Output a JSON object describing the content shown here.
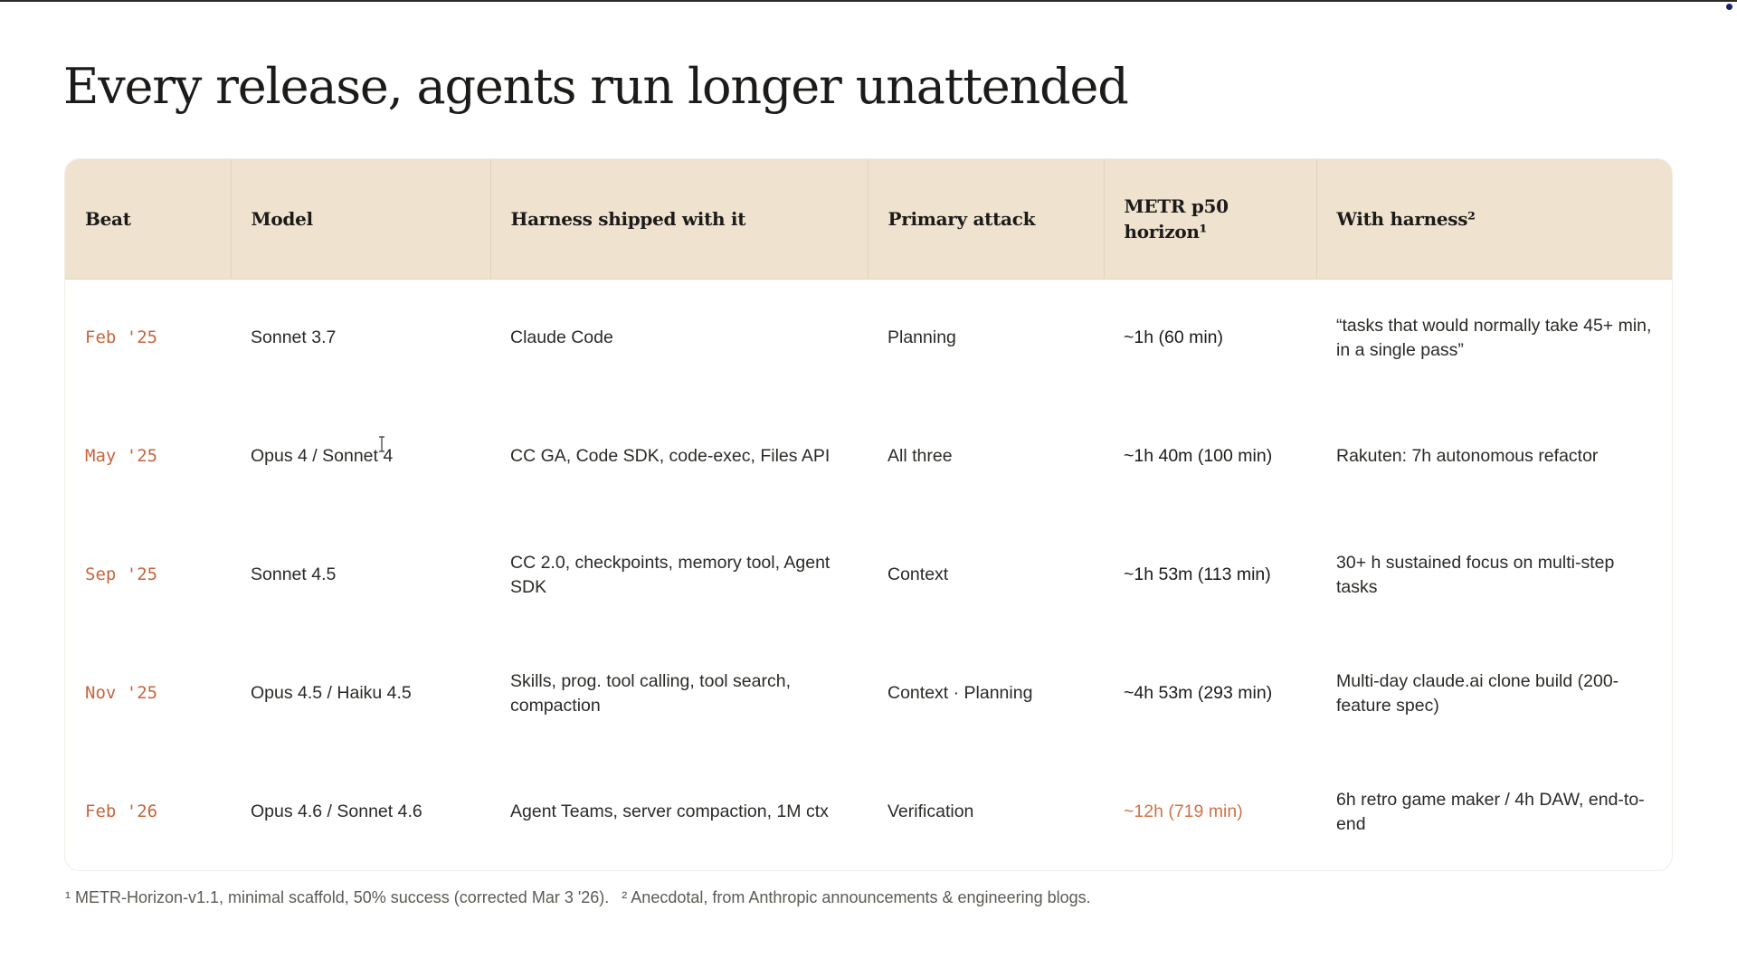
{
  "slide": {
    "title": "Every release, agents run longer unattended"
  },
  "table": {
    "headers": {
      "beat": "Beat",
      "model": "Model",
      "harness": "Harness shipped with it",
      "attack": "Primary attack",
      "metr": "METR p50 horizon¹",
      "with_harness": "With harness²"
    },
    "rows": [
      {
        "beat": "Feb '25",
        "model": "Sonnet 3.7",
        "harness": "Claude Code",
        "attack": "Planning",
        "metr": "~1h (60 min)",
        "with_harness": "“tasks that would normally take 45+ min, in a single pass”"
      },
      {
        "beat": "May '25",
        "model": "Opus 4 / Sonnet 4",
        "harness": "CC GA, Code SDK, code-exec, Files API",
        "attack": "All three",
        "metr": "~1h 40m (100 min)",
        "with_harness": "Rakuten: 7h autonomous refactor"
      },
      {
        "beat": "Sep '25",
        "model": "Sonnet 4.5",
        "harness": "CC 2.0, checkpoints, memory tool, Agent SDK",
        "attack": "Context",
        "metr": "~1h 53m (113 min)",
        "with_harness": "30+ h sustained focus on multi-step tasks"
      },
      {
        "beat": "Nov '25",
        "model": "Opus 4.5 / Haiku 4.5",
        "harness": "Skills, prog. tool calling, tool search, compaction",
        "attack": "Context · Planning",
        "metr": "~4h 53m (293 min)",
        "with_harness": "Multi-day claude.ai clone build (200-feature spec)"
      },
      {
        "beat": "Feb '26",
        "model": "Opus 4.6 / Sonnet 4.6",
        "harness": "Agent Teams, server compaction, 1M ctx",
        "attack": "Verification",
        "metr": "~12h (719 min)",
        "with_harness": "6h retro game maker / 4h DAW, end-to-end"
      }
    ]
  },
  "footnotes": {
    "note1": "¹ METR-Horizon-v1.1, minimal scaffold, 50% success (corrected Mar 3 '26).",
    "note2": "² Anecdotal, from Anthropic announcements & engineering blogs."
  },
  "colors": {
    "header_bg": "#efe2cf",
    "beat_accent": "#c8643d",
    "highlight_metr": "#d07248"
  }
}
